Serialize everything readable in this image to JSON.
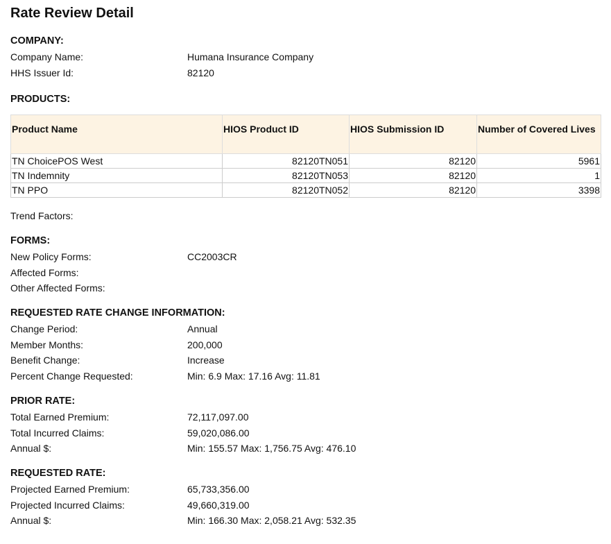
{
  "title": "Rate Review Detail",
  "company": {
    "heading": "COMPANY:",
    "fields": [
      {
        "label": "Company Name:",
        "value": "Humana Insurance Company"
      },
      {
        "label": "HHS Issuer Id:",
        "value": "82120"
      }
    ]
  },
  "products": {
    "heading": "PRODUCTS:",
    "columns": [
      "Product Name",
      "HIOS Product ID",
      "HIOS Submission ID",
      "Number of Covered Lives"
    ],
    "rows": [
      [
        "TN ChoicePOS West",
        "82120TN051",
        "82120",
        "5961"
      ],
      [
        "TN Indemnity",
        "82120TN053",
        "82120",
        "1"
      ],
      [
        "TN PPO",
        "82120TN052",
        "82120",
        "3398"
      ]
    ]
  },
  "trend": {
    "label": "Trend Factors:"
  },
  "forms": {
    "heading": "FORMS:",
    "fields": [
      {
        "label": "New Policy Forms:",
        "value": "CC2003CR"
      },
      {
        "label": "Affected Forms:",
        "value": ""
      },
      {
        "label": "Other Affected Forms:",
        "value": ""
      }
    ]
  },
  "requested_info": {
    "heading": "REQUESTED RATE CHANGE INFORMATION:",
    "fields": [
      {
        "label": "Change Period:",
        "value": "Annual"
      },
      {
        "label": "Member Months:",
        "value": "200,000"
      },
      {
        "label": "Benefit Change:",
        "value": "Increase"
      },
      {
        "label": "Percent Change Requested:",
        "value": "Min: 6.9 Max: 17.16 Avg: 11.81"
      }
    ]
  },
  "prior_rate": {
    "heading": "PRIOR RATE:",
    "fields": [
      {
        "label": "Total Earned Premium:",
        "value": "72,117,097.00"
      },
      {
        "label": "Total Incurred Claims:",
        "value": "59,020,086.00"
      },
      {
        "label": "Annual $:",
        "value": "Min: 155.57 Max: 1,756.75 Avg: 476.10"
      }
    ]
  },
  "requested_rate": {
    "heading": "REQUESTED RATE:",
    "fields": [
      {
        "label": "Projected Earned Premium:",
        "value": "65,733,356.00"
      },
      {
        "label": "Projected Incurred Claims:",
        "value": "49,660,319.00"
      },
      {
        "label": "Annual $:",
        "value": "Min: 166.30 Max: 2,058.21 Avg: 532.35"
      }
    ]
  }
}
